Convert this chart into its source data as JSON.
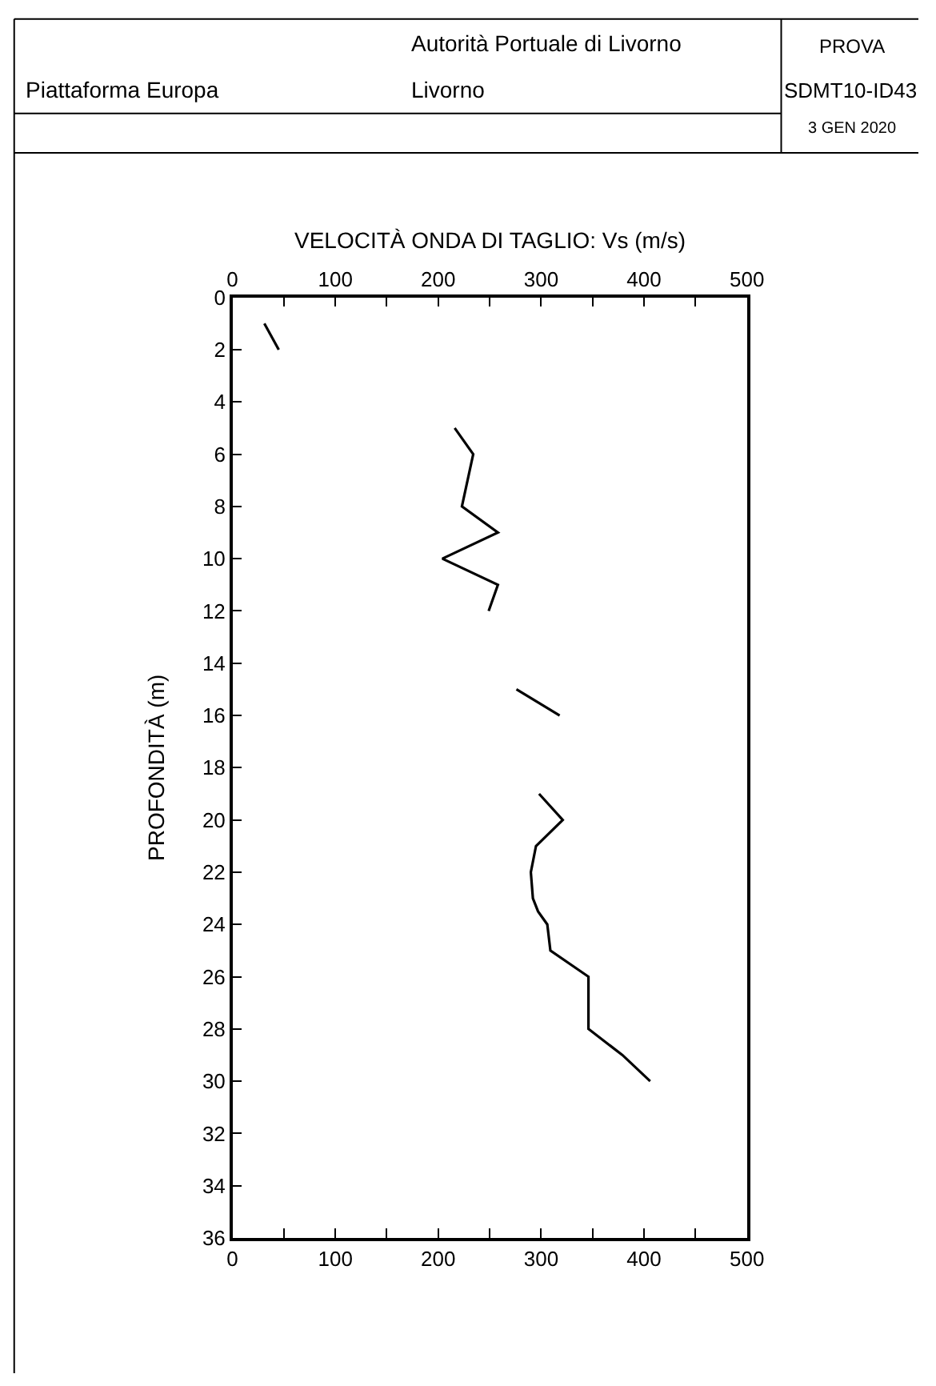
{
  "chart_data": {
    "type": "line",
    "title": "VELOCITÀ ONDA DI TAGLIO: Vs (m/s)",
    "ylabel": "PROFONDITÀ (m)",
    "series": [
      {
        "color": "#000000",
        "x": [
          31,
          45,
          null,
          216,
          234,
          223,
          258,
          204,
          258,
          249,
          null,
          276,
          318,
          null,
          298,
          321,
          295,
          290,
          292,
          297,
          306,
          309,
          346,
          346,
          379,
          406
        ],
        "values": [
          1,
          2,
          null,
          5,
          6,
          8,
          9,
          10,
          11,
          12,
          null,
          15,
          16,
          null,
          19,
          20,
          21,
          22,
          23,
          23.5,
          24,
          25,
          26,
          28,
          29,
          30
        ]
      }
    ],
    "xlim": [
      0,
      500
    ],
    "xticks": [
      0,
      100,
      200,
      300,
      400,
      500
    ],
    "x2lim": [
      0,
      500
    ],
    "x2ticks": [
      0,
      100,
      200,
      300,
      400,
      500
    ],
    "ylim": [
      36,
      0
    ],
    "yticks": [
      0,
      2,
      4,
      6,
      8,
      10,
      12,
      14,
      16,
      18,
      20,
      22,
      24,
      26,
      28,
      30,
      32,
      34,
      36
    ],
    "marker": "none",
    "line_style": "solid",
    "annotations": [
      "Autorità Portuale di Livorno",
      "Piattaforma Europa",
      "Livorno",
      "PROVA",
      "SDMT10-ID43",
      "3 GEN 2020"
    ]
  }
}
